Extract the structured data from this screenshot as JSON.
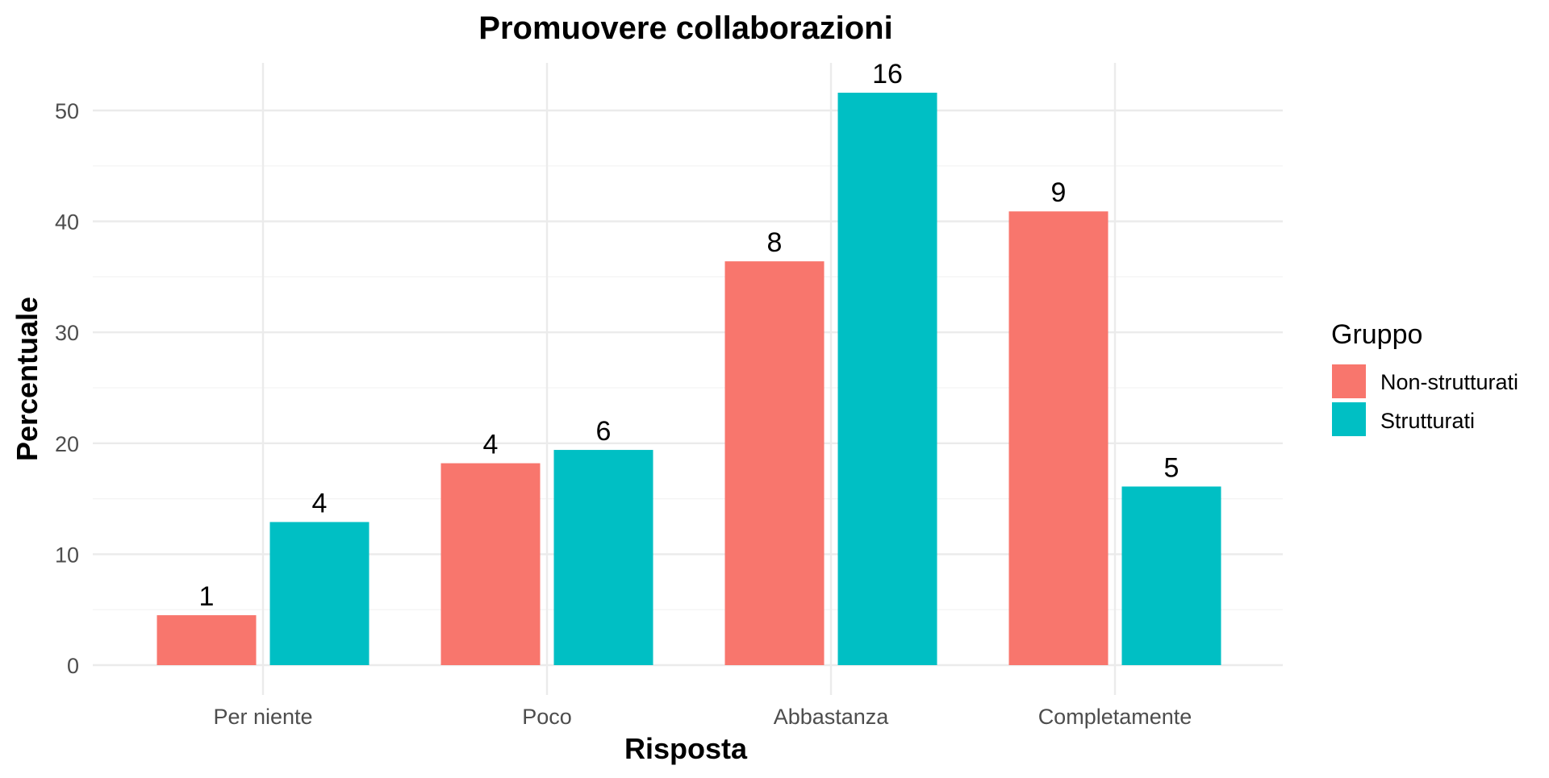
{
  "chart_data": {
    "type": "bar",
    "title": "Promuovere collaborazioni",
    "xlabel": "Risposta",
    "ylabel": "Percentuale",
    "categories": [
      "Per niente",
      "Poco",
      "Abbastanza",
      "Completamente"
    ],
    "series": [
      {
        "name": "Non-strutturati",
        "color": "#F8766D",
        "values": [
          4.5,
          18.2,
          36.4,
          40.9
        ],
        "labels": [
          "1",
          "4",
          "8",
          "9"
        ]
      },
      {
        "name": "Strutturati",
        "color": "#00BFC4",
        "values": [
          12.9,
          19.4,
          51.6,
          16.1
        ],
        "labels": [
          "4",
          "6",
          "16",
          "5"
        ]
      }
    ],
    "ylim": [
      0,
      53
    ],
    "yticks": [
      0,
      10,
      20,
      30,
      40,
      50
    ],
    "grid": true,
    "legend": {
      "title": "Gruppo",
      "position": "right"
    }
  }
}
